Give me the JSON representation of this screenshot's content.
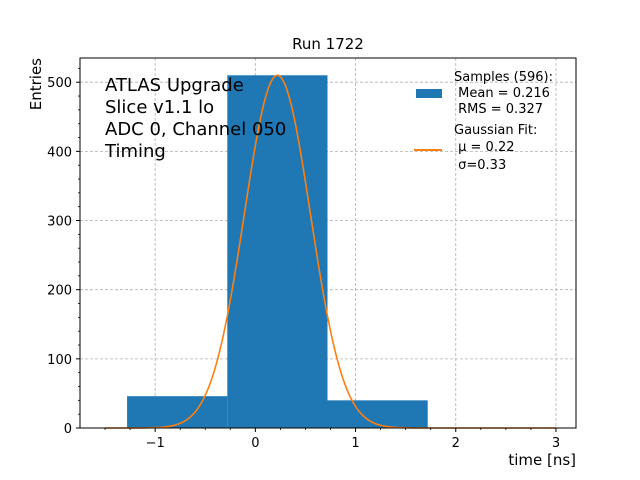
{
  "chart_data": {
    "type": "bar",
    "title": "Run 1722",
    "xlabel": "time [ns]",
    "ylabel": "Entries",
    "xlim": [
      -1.75,
      3.2
    ],
    "ylim": [
      0,
      535
    ],
    "grid": true,
    "bar_color": "#1f77b4",
    "fit_color": "#ff7f0e",
    "x_ticks": [
      -1,
      0,
      1,
      2,
      3
    ],
    "x_tick_labels": [
      "−1",
      "0",
      "1",
      "2",
      "3"
    ],
    "y_ticks": [
      0,
      100,
      200,
      300,
      400,
      500
    ],
    "y_tick_labels": [
      "0",
      "100",
      "200",
      "300",
      "400",
      "500"
    ],
    "histogram": {
      "bin_edges": [
        -1.28,
        -0.28,
        0.72,
        1.72
      ],
      "counts": [
        46,
        510,
        40
      ]
    },
    "gaussian_fit": {
      "amplitude": 510,
      "mu": 0.22,
      "sigma": 0.33,
      "x_range": [
        -1.5,
        3.0
      ]
    },
    "annotation_lines": [
      "ATLAS Upgrade",
      "Slice v1.1 lo",
      "ADC 0, Channel 050",
      "Timing"
    ],
    "legend": {
      "position": "top-right",
      "samples_lines": [
        "Samples (596):",
        " Mean = 0.216",
        " RMS = 0.327"
      ],
      "fit_lines": [
        "Gaussian Fit:",
        " μ = 0.22",
        " σ=0.33"
      ]
    }
  }
}
